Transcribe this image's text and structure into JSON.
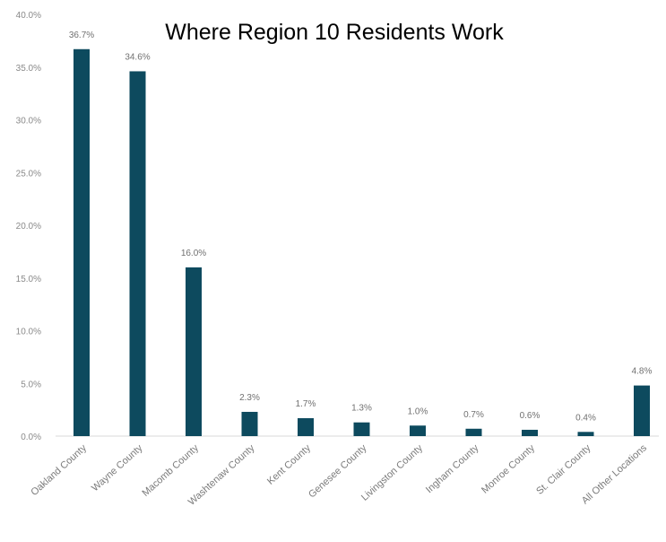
{
  "chart_data": {
    "type": "bar",
    "title": "Where Region 10 Residents Work",
    "xlabel": "",
    "ylabel": "",
    "ylim": [
      0,
      40
    ],
    "yticks": [
      "0.0%",
      "5.0%",
      "10.0%",
      "15.0%",
      "20.0%",
      "25.0%",
      "30.0%",
      "35.0%",
      "40.0%"
    ],
    "grid": false,
    "legend": "none",
    "categories": [
      "Oakland County",
      "Wayne County",
      "Macomb County",
      "Washtenaw County",
      "Kent County",
      "Genesee County",
      "Livingston County",
      "Ingham County",
      "Monroe County",
      "St. Clair County",
      "All Other Locations"
    ],
    "values": [
      36.7,
      34.6,
      16.0,
      2.3,
      1.7,
      1.3,
      1.0,
      0.7,
      0.6,
      0.4,
      4.8
    ],
    "value_labels": [
      "36.7%",
      "34.6%",
      "16.0%",
      "2.3%",
      "1.7%",
      "1.3%",
      "1.0%",
      "0.7%",
      "0.6%",
      "0.4%",
      "4.8%"
    ],
    "bar_color": "#0d4a5e"
  }
}
